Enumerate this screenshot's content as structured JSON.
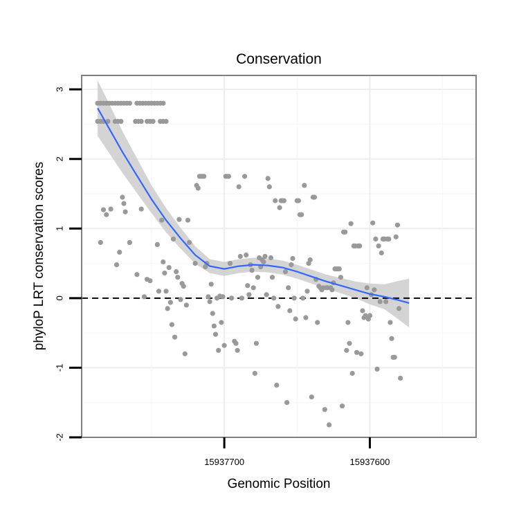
{
  "chart_data": {
    "type": "scatter",
    "title": "Conservation",
    "xlabel": "Genomic Position",
    "ylabel": "phyloP LRT conservation scores",
    "x_reversed": true,
    "xlim": [
      15937798,
      15937527
    ],
    "ylim": [
      -2.0,
      3.2
    ],
    "x_ticks": [
      15937700,
      15937600
    ],
    "x_tick_labels": [
      "15937700",
      "15937600"
    ],
    "y_ticks": [
      -2,
      -1,
      0,
      1,
      2,
      3
    ],
    "y_tick_labels": [
      "-2",
      "-1",
      "0",
      "1",
      "2",
      "3"
    ],
    "grid": true,
    "reference_line": {
      "y": 0,
      "style": "dashed"
    },
    "colors": {
      "points": "#999999",
      "smooth_line": "#3366FF",
      "ribbon": "#cccccc",
      "panel_border": "#7f7f7f",
      "grid": "#eeeeee"
    },
    "points": [
      [
        15937787,
        2.8
      ],
      [
        15937785,
        2.8
      ],
      [
        15937783,
        2.8
      ],
      [
        15937781,
        2.8
      ],
      [
        15937779,
        2.8
      ],
      [
        15937777,
        2.8
      ],
      [
        15937775,
        2.8
      ],
      [
        15937773,
        2.8
      ],
      [
        15937771,
        2.8
      ],
      [
        15937769,
        2.8
      ],
      [
        15937767,
        2.8
      ],
      [
        15937765,
        2.8
      ],
      [
        15937760,
        2.8
      ],
      [
        15937758,
        2.8
      ],
      [
        15937756,
        2.8
      ],
      [
        15937754,
        2.8
      ],
      [
        15937752,
        2.8
      ],
      [
        15937750,
        2.8
      ],
      [
        15937748,
        2.8
      ],
      [
        15937746,
        2.8
      ],
      [
        15937744,
        2.8
      ],
      [
        15937742,
        2.8
      ],
      [
        15937787,
        2.54
      ],
      [
        15937785,
        2.54
      ],
      [
        15937783,
        2.54
      ],
      [
        15937780,
        2.54
      ],
      [
        15937775,
        2.54
      ],
      [
        15937773,
        2.54
      ],
      [
        15937771,
        2.54
      ],
      [
        15937761,
        2.54
      ],
      [
        15937759,
        2.54
      ],
      [
        15937757,
        2.54
      ],
      [
        15937753,
        2.54
      ],
      [
        15937751,
        2.54
      ],
      [
        15937749,
        2.54
      ],
      [
        15937744,
        2.54
      ],
      [
        15937742,
        2.54
      ],
      [
        15937740,
        2.54
      ],
      [
        15937785,
        0.8
      ],
      [
        15937783,
        1.27
      ],
      [
        15937781,
        1.2
      ],
      [
        15937778,
        1.28
      ],
      [
        15937774,
        0.48
      ],
      [
        15937772,
        0.66
      ],
      [
        15937770,
        1.45
      ],
      [
        15937769,
        1.36
      ],
      [
        15937768,
        1.24
      ],
      [
        15937765,
        0.8
      ],
      [
        15937760,
        0.34
      ],
      [
        15937757,
        1.28
      ],
      [
        15937755,
        0.02
      ],
      [
        15937753,
        0.27
      ],
      [
        15937751,
        0.25
      ],
      [
        15937746,
        0.77
      ],
      [
        15937745,
        0.1
      ],
      [
        15937743,
        1.12
      ],
      [
        15937742,
        0.52
      ],
      [
        15937741,
        0.36
      ],
      [
        15937740,
        0.1
      ],
      [
        15937739,
        -0.15
      ],
      [
        15937738,
        0.44
      ],
      [
        15937737,
        -0.06
      ],
      [
        15937736,
        -0.38
      ],
      [
        15937735,
        0.85
      ],
      [
        15937734,
        -0.56
      ],
      [
        15937733,
        0.38
      ],
      [
        15937732,
        0.3
      ],
      [
        15937731,
        1.13
      ],
      [
        15937730,
        -0.02
      ],
      [
        15937729,
        0.21
      ],
      [
        15937728,
        0.17
      ],
      [
        15937727,
        -0.8
      ],
      [
        15937726,
        -0.1
      ],
      [
        15937725,
        1.12
      ],
      [
        15937724,
        0.8
      ],
      [
        15937720,
        0.5
      ],
      [
        15937719,
        1.62
      ],
      [
        15937718,
        1.58
      ],
      [
        15937717,
        1.75
      ],
      [
        15937716,
        1.75
      ],
      [
        15937715,
        1.75
      ],
      [
        15937714,
        1.75
      ],
      [
        15937713,
        0.45
      ],
      [
        15937712,
        0.5
      ],
      [
        15937711,
        0.02
      ],
      [
        15937710,
        -0.05
      ],
      [
        15937709,
        0.2
      ],
      [
        15937708,
        -0.22
      ],
      [
        15937707,
        -0.4
      ],
      [
        15937706,
        -0.52
      ],
      [
        15937705,
        0.0
      ],
      [
        15937704,
        -0.75
      ],
      [
        15937703,
        0.03
      ],
      [
        15937702,
        -0.35
      ],
      [
        15937701,
        0.02
      ],
      [
        15937700,
        -0.68
      ],
      [
        15937699,
        1.75
      ],
      [
        15937698,
        1.75
      ],
      [
        15937697,
        1.75
      ],
      [
        15937696,
        0.5
      ],
      [
        15937695,
        0.0
      ],
      [
        15937693,
        -0.62
      ],
      [
        15937692,
        -0.65
      ],
      [
        15937691,
        -0.75
      ],
      [
        15937690,
        1.6
      ],
      [
        15937689,
        0.6
      ],
      [
        15937688,
        0.0
      ],
      [
        15937686,
        1.75
      ],
      [
        15937685,
        0.62
      ],
      [
        15937684,
        0.18
      ],
      [
        15937683,
        0.05
      ],
      [
        15937682,
        0.48
      ],
      [
        15937681,
        0.4
      ],
      [
        15937680,
        0.15
      ],
      [
        15937679,
        -1.08
      ],
      [
        15937678,
        -0.65
      ],
      [
        15937677,
        0.3
      ],
      [
        15937676,
        0.58
      ],
      [
        15937675,
        0.45
      ],
      [
        15937674,
        0.55
      ],
      [
        15937673,
        0.52
      ],
      [
        15937672,
        0.6
      ],
      [
        15937671,
        0.05
      ],
      [
        15937670,
        1.72
      ],
      [
        15937669,
        1.6
      ],
      [
        15937668,
        0.58
      ],
      [
        15937667,
        0.3
      ],
      [
        15937666,
        0.0
      ],
      [
        15937665,
        1.4
      ],
      [
        15937664,
        -1.25
      ],
      [
        15937663,
        -0.12
      ],
      [
        15937662,
        1.3
      ],
      [
        15937661,
        1.4
      ],
      [
        15937660,
        1.4
      ],
      [
        15937659,
        1.4
      ],
      [
        15937658,
        0.38
      ],
      [
        15937657,
        -1.5
      ],
      [
        15937656,
        0.15
      ],
      [
        15937655,
        -0.18
      ],
      [
        15937654,
        0.48
      ],
      [
        15937653,
        0.57
      ],
      [
        15937652,
        0.0
      ],
      [
        15937651,
        -0.3
      ],
      [
        15937650,
        1.4
      ],
      [
        15937649,
        1.4
      ],
      [
        15937648,
        1.2
      ],
      [
        15937647,
        1.2
      ],
      [
        15937646,
        0.0
      ],
      [
        15937645,
        1.62
      ],
      [
        15937644,
        -0.28
      ],
      [
        15937643,
        0.1
      ],
      [
        15937642,
        0.5
      ],
      [
        15937641,
        0.55
      ],
      [
        15937640,
        -1.42
      ],
      [
        15937639,
        1.45
      ],
      [
        15937638,
        1.45
      ],
      [
        15937637,
        0.27
      ],
      [
        15937636,
        -0.35
      ],
      [
        15937635,
        0.17
      ],
      [
        15937634,
        0.15
      ],
      [
        15937633,
        0.12
      ],
      [
        15937632,
        0.15
      ],
      [
        15937631,
        -1.6
      ],
      [
        15937630,
        0.15
      ],
      [
        15937629,
        0.15
      ],
      [
        15937628,
        -1.82
      ],
      [
        15937627,
        0.15
      ],
      [
        15937626,
        0.12
      ],
      [
        15937625,
        0.22
      ],
      [
        15937624,
        0.42
      ],
      [
        15937623,
        0.42
      ],
      [
        15937622,
        0.42
      ],
      [
        15937621,
        0.42
      ],
      [
        15937620,
        0.3
      ],
      [
        15937619,
        -1.55
      ],
      [
        15937618,
        0.95
      ],
      [
        15937617,
        0.95
      ],
      [
        15937616,
        -0.75
      ],
      [
        15937615,
        -0.35
      ],
      [
        15937614,
        -0.65
      ],
      [
        15937613,
        1.07
      ],
      [
        15937612,
        -1.08
      ],
      [
        15937611,
        0.75
      ],
      [
        15937610,
        0.75
      ],
      [
        15937609,
        -0.78
      ],
      [
        15937608,
        0.75
      ],
      [
        15937607,
        0.75
      ],
      [
        15937606,
        -0.8
      ],
      [
        15937605,
        -0.18
      ],
      [
        15937604,
        -0.28
      ],
      [
        15937603,
        -0.25
      ],
      [
        15937602,
        0.15
      ],
      [
        15937601,
        -0.3
      ],
      [
        15937600,
        -0.25
      ],
      [
        15937599,
        0.05
      ],
      [
        15937598,
        1.08
      ],
      [
        15937597,
        0.12
      ],
      [
        15937596,
        0.85
      ],
      [
        15937595,
        -1.02
      ],
      [
        15937594,
        0.75
      ],
      [
        15937593,
        -0.05
      ],
      [
        15937592,
        0.65
      ],
      [
        15937591,
        0.85
      ],
      [
        15937590,
        0.85
      ],
      [
        15937589,
        -0.05
      ],
      [
        15937588,
        0.85
      ],
      [
        15937587,
        0.85
      ],
      [
        15937586,
        -0.35
      ],
      [
        15937585,
        -0.58
      ],
      [
        15937584,
        -0.85
      ],
      [
        15937583,
        -0.85
      ],
      [
        15937582,
        0.88
      ],
      [
        15937581,
        1.05
      ],
      [
        15937580,
        -0.15
      ],
      [
        15937579,
        -1.15
      ]
    ],
    "smooth_line": [
      [
        15937787,
        2.73
      ],
      [
        15937780,
        2.47
      ],
      [
        15937770,
        2.1
      ],
      [
        15937760,
        1.76
      ],
      [
        15937750,
        1.42
      ],
      [
        15937740,
        1.12
      ],
      [
        15937730,
        0.86
      ],
      [
        15937720,
        0.62
      ],
      [
        15937710,
        0.46
      ],
      [
        15937700,
        0.42
      ],
      [
        15937690,
        0.46
      ],
      [
        15937680,
        0.48
      ],
      [
        15937670,
        0.47
      ],
      [
        15937660,
        0.44
      ],
      [
        15937650,
        0.38
      ],
      [
        15937640,
        0.31
      ],
      [
        15937630,
        0.24
      ],
      [
        15937620,
        0.18
      ],
      [
        15937610,
        0.12
      ],
      [
        15937600,
        0.06
      ],
      [
        15937590,
        0.02
      ],
      [
        15937580,
        -0.03
      ],
      [
        15937573,
        -0.07
      ]
    ],
    "ribbon_halfwidth": [
      [
        15937787,
        0.4
      ],
      [
        15937770,
        0.3
      ],
      [
        15937750,
        0.2
      ],
      [
        15937730,
        0.15
      ],
      [
        15937710,
        0.1
      ],
      [
        15937690,
        0.1
      ],
      [
        15937670,
        0.1
      ],
      [
        15937650,
        0.1
      ],
      [
        15937630,
        0.1
      ],
      [
        15937610,
        0.12
      ],
      [
        15937590,
        0.18
      ],
      [
        15937573,
        0.35
      ]
    ]
  }
}
